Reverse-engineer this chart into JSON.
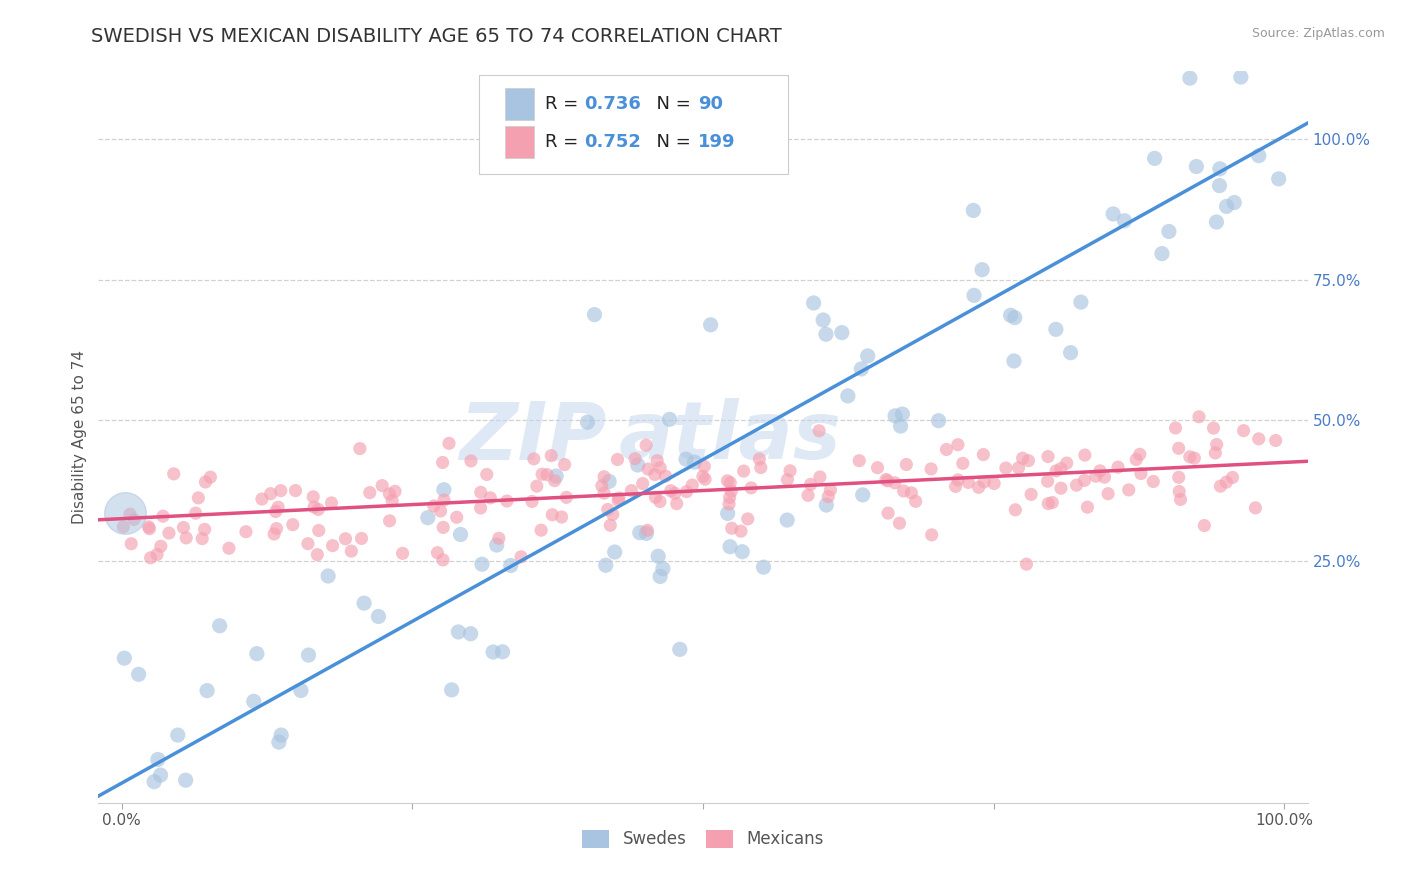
{
  "title": "SWEDISH VS MEXICAN DISABILITY AGE 65 TO 74 CORRELATION CHART",
  "source_text": "Source: ZipAtlas.com",
  "ylabel": "Disability Age 65 to 74",
  "xlim": [
    -0.02,
    1.02
  ],
  "ylim": [
    -0.18,
    1.12
  ],
  "x_ticks": [
    0.0,
    0.25,
    0.5,
    0.75,
    1.0
  ],
  "x_tick_labels_show": [
    "0.0%",
    "",
    "",
    "",
    "100.0%"
  ],
  "y_ticks": [
    0.25,
    0.5,
    0.75,
    1.0
  ],
  "y_tick_labels": [
    "25.0%",
    "50.0%",
    "75.0%",
    "100.0%"
  ],
  "swedish_color": "#a8c4e0",
  "mexican_color": "#f4a0b0",
  "swedish_line_color": "#4a90d9",
  "mexican_line_color": "#e05080",
  "swedish_R": 0.736,
  "swedish_N": 90,
  "mexican_R": 0.752,
  "mexican_N": 199,
  "watermark_part1": "ZIP",
  "watermark_part2": "atlas",
  "legend_swedes": "Swedes",
  "legend_mexicans": "Mexicans",
  "background_color": "#ffffff",
  "grid_color": "#cccccc",
  "title_fontsize": 14,
  "axis_label_fontsize": 11,
  "tick_fontsize": 11,
  "swedish_line_slope": 1.15,
  "swedish_line_intercept": -0.145,
  "mexican_line_slope": 0.1,
  "mexican_line_intercept": 0.325,
  "swedish_seed": 12,
  "mexican_seed": 7
}
